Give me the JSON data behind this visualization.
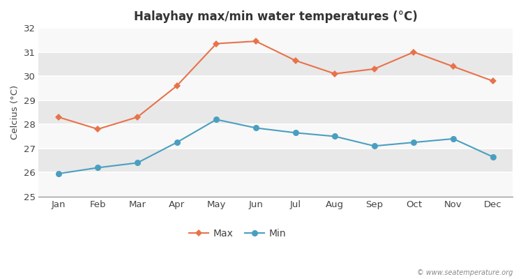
{
  "months": [
    "Jan",
    "Feb",
    "Mar",
    "Apr",
    "May",
    "Jun",
    "Jul",
    "Aug",
    "Sep",
    "Oct",
    "Nov",
    "Dec"
  ],
  "max_temps": [
    28.3,
    27.8,
    28.3,
    29.6,
    31.35,
    31.45,
    30.65,
    30.1,
    30.3,
    31.0,
    30.4,
    29.8
  ],
  "min_temps": [
    25.95,
    26.2,
    26.4,
    27.25,
    28.2,
    27.85,
    27.65,
    27.5,
    27.1,
    27.25,
    27.4,
    26.65
  ],
  "max_color": "#e8724a",
  "min_color": "#4a9fc0",
  "title": "Halayhay max/min water temperatures (°C)",
  "ylabel": "Celcius (°C)",
  "ylim": [
    25,
    32
  ],
  "yticks": [
    25,
    26,
    27,
    28,
    29,
    30,
    31,
    32
  ],
  "bg_color": "#ffffff",
  "plot_bg_color": "#f0f0f0",
  "band_color_light": "#f8f8f8",
  "band_color_dark": "#e8e8e8",
  "grid_color": "#ffffff",
  "watermark": "© www.seatemperature.org",
  "legend_max": "Max",
  "legend_min": "Min"
}
